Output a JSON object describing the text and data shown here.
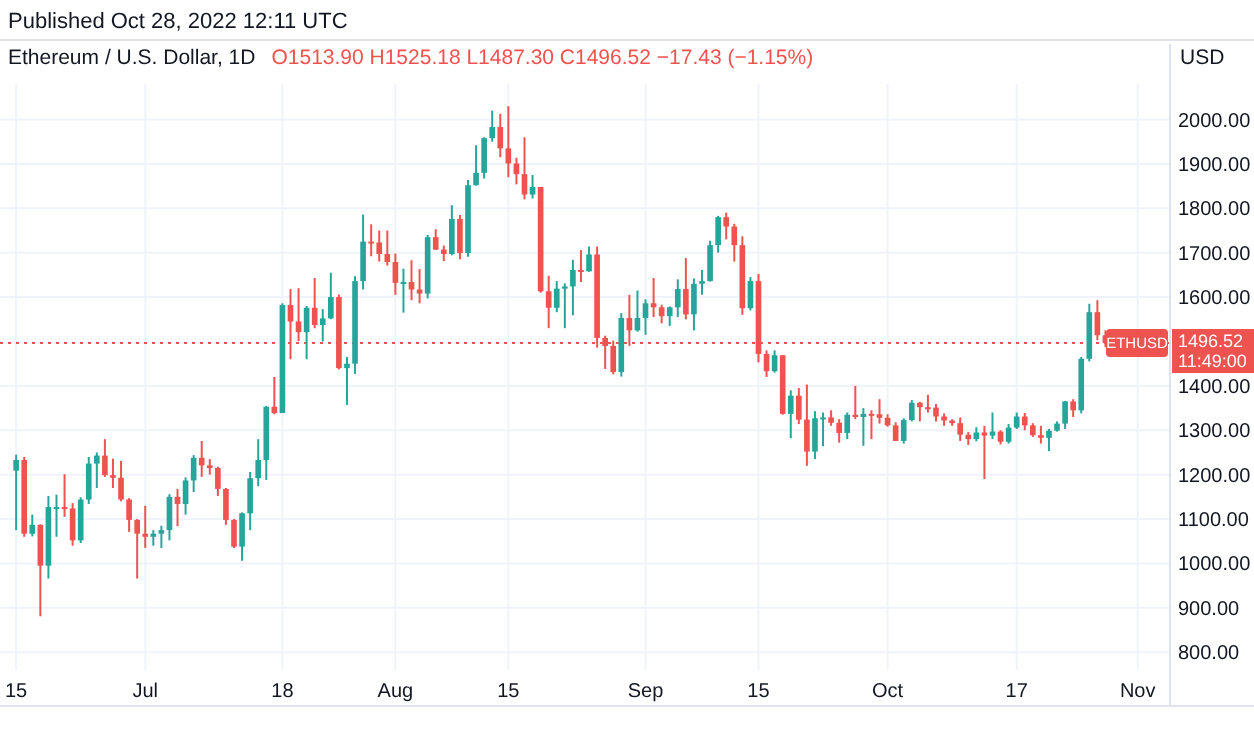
{
  "chart_data": {
    "type": "candlestick",
    "title": "Ethereum / U.S. Dollar, 1D",
    "subtitle": "O1513.90  H1525.18  L1487.30  C1496.52  −17.43 (−1.15%)",
    "ylabel": "USD",
    "annotations": [
      "Published Oct 28, 2022 12:11 UTC",
      "1496.52",
      "11:49:00"
    ],
    "x": [
      "2022-06-15",
      "2022-06-16",
      "2022-06-17",
      "2022-06-18",
      "2022-06-19",
      "2022-06-20",
      "2022-06-21",
      "2022-06-22",
      "2022-06-23",
      "2022-06-24",
      "2022-06-25",
      "2022-06-26",
      "2022-06-27",
      "2022-06-28",
      "2022-06-29",
      "2022-06-30",
      "2022-07-01",
      "2022-07-02",
      "2022-07-03",
      "2022-07-04",
      "2022-07-05",
      "2022-07-06",
      "2022-07-07",
      "2022-07-08",
      "2022-07-09",
      "2022-07-10",
      "2022-07-11",
      "2022-07-12",
      "2022-07-13",
      "2022-07-14",
      "2022-07-15",
      "2022-07-16",
      "2022-07-17",
      "2022-07-18",
      "2022-07-19",
      "2022-07-20",
      "2022-07-21",
      "2022-07-22",
      "2022-07-23",
      "2022-07-24",
      "2022-07-25",
      "2022-07-26",
      "2022-07-27",
      "2022-07-28",
      "2022-07-29",
      "2022-07-30",
      "2022-07-31",
      "2022-08-01",
      "2022-08-02",
      "2022-08-03",
      "2022-08-04",
      "2022-08-05",
      "2022-08-06",
      "2022-08-07",
      "2022-08-08",
      "2022-08-09",
      "2022-08-10",
      "2022-08-11",
      "2022-08-12",
      "2022-08-13",
      "2022-08-14",
      "2022-08-15",
      "2022-08-16",
      "2022-08-17",
      "2022-08-18",
      "2022-08-19",
      "2022-08-20",
      "2022-08-21",
      "2022-08-22",
      "2022-08-23",
      "2022-08-24",
      "2022-08-25",
      "2022-08-26",
      "2022-08-27",
      "2022-08-28",
      "2022-08-29",
      "2022-08-30",
      "2022-08-31",
      "2022-09-01",
      "2022-09-02",
      "2022-09-03",
      "2022-09-04",
      "2022-09-05",
      "2022-09-06",
      "2022-09-07",
      "2022-09-08",
      "2022-09-09",
      "2022-09-10",
      "2022-09-11",
      "2022-09-12",
      "2022-09-13",
      "2022-09-14",
      "2022-09-15",
      "2022-09-16",
      "2022-09-17",
      "2022-09-18",
      "2022-09-19",
      "2022-09-20",
      "2022-09-21",
      "2022-09-22",
      "2022-09-23",
      "2022-09-24",
      "2022-09-25",
      "2022-09-26",
      "2022-09-27",
      "2022-09-28",
      "2022-09-29",
      "2022-09-30",
      "2022-10-01",
      "2022-10-02",
      "2022-10-03",
      "2022-10-04",
      "2022-10-05",
      "2022-10-06",
      "2022-10-07",
      "2022-10-08",
      "2022-10-09",
      "2022-10-10",
      "2022-10-11",
      "2022-10-12",
      "2022-10-13",
      "2022-10-14",
      "2022-10-15",
      "2022-10-16",
      "2022-10-17",
      "2022-10-18",
      "2022-10-19",
      "2022-10-20",
      "2022-10-21",
      "2022-10-22",
      "2022-10-23",
      "2022-10-24",
      "2022-10-25",
      "2022-10-26",
      "2022-10-27",
      "2022-10-28"
    ],
    "ohlc": [
      [
        1209,
        1245,
        1075,
        1233
      ],
      [
        1233,
        1240,
        1060,
        1067
      ],
      [
        1067,
        1110,
        1061,
        1087
      ],
      [
        1087,
        1088,
        881,
        995
      ],
      [
        995,
        1152,
        966,
        1127
      ],
      [
        1127,
        1155,
        1060,
        1127
      ],
      [
        1127,
        1201,
        1105,
        1124
      ],
      [
        1124,
        1136,
        1040,
        1052
      ],
      [
        1052,
        1149,
        1046,
        1144
      ],
      [
        1144,
        1240,
        1134,
        1225
      ],
      [
        1225,
        1250,
        1170,
        1243
      ],
      [
        1243,
        1280,
        1195,
        1199
      ],
      [
        1199,
        1236,
        1170,
        1193
      ],
      [
        1193,
        1231,
        1140,
        1144
      ],
      [
        1144,
        1147,
        1071,
        1098
      ],
      [
        1098,
        1100,
        966,
        1067
      ],
      [
        1067,
        1130,
        1035,
        1060
      ],
      [
        1060,
        1075,
        1040,
        1067
      ],
      [
        1067,
        1085,
        1035,
        1075
      ],
      [
        1075,
        1156,
        1052,
        1150
      ],
      [
        1150,
        1168,
        1084,
        1134
      ],
      [
        1134,
        1194,
        1110,
        1187
      ],
      [
        1187,
        1244,
        1161,
        1238
      ],
      [
        1238,
        1276,
        1195,
        1221
      ],
      [
        1221,
        1235,
        1200,
        1215
      ],
      [
        1215,
        1218,
        1152,
        1168
      ],
      [
        1168,
        1170,
        1087,
        1098
      ],
      [
        1098,
        1100,
        1035,
        1038
      ],
      [
        1038,
        1115,
        1006,
        1113
      ],
      [
        1113,
        1206,
        1075,
        1192
      ],
      [
        1192,
        1280,
        1174,
        1233
      ],
      [
        1233,
        1355,
        1188,
        1353
      ],
      [
        1353,
        1420,
        1336,
        1339
      ],
      [
        1339,
        1586,
        1339,
        1582
      ],
      [
        1582,
        1618,
        1460,
        1545
      ],
      [
        1545,
        1620,
        1501,
        1521
      ],
      [
        1521,
        1580,
        1460,
        1576
      ],
      [
        1576,
        1643,
        1530,
        1537
      ],
      [
        1537,
        1573,
        1500,
        1552
      ],
      [
        1552,
        1655,
        1550,
        1600
      ],
      [
        1600,
        1606,
        1437,
        1440
      ],
      [
        1440,
        1465,
        1357,
        1450
      ],
      [
        1450,
        1647,
        1427,
        1636
      ],
      [
        1636,
        1786,
        1617,
        1725
      ],
      [
        1725,
        1764,
        1692,
        1723
      ],
      [
        1723,
        1750,
        1680,
        1697
      ],
      [
        1697,
        1750,
        1671,
        1679
      ],
      [
        1679,
        1698,
        1605,
        1632
      ],
      [
        1632,
        1664,
        1565,
        1634
      ],
      [
        1634,
        1683,
        1593,
        1617
      ],
      [
        1617,
        1663,
        1586,
        1608
      ],
      [
        1608,
        1740,
        1597,
        1735
      ],
      [
        1735,
        1753,
        1706,
        1707
      ],
      [
        1707,
        1716,
        1681,
        1697
      ],
      [
        1697,
        1807,
        1694,
        1776
      ],
      [
        1776,
        1785,
        1685,
        1699
      ],
      [
        1699,
        1864,
        1691,
        1852
      ],
      [
        1852,
        1942,
        1851,
        1880
      ],
      [
        1880,
        1960,
        1867,
        1958
      ],
      [
        1958,
        2020,
        1950,
        1983
      ],
      [
        1983,
        2013,
        1915,
        1935
      ],
      [
        1935,
        2030,
        1870,
        1901
      ],
      [
        1901,
        1914,
        1854,
        1877
      ],
      [
        1877,
        1960,
        1820,
        1831
      ],
      [
        1831,
        1875,
        1822,
        1848
      ],
      [
        1848,
        1848,
        1610,
        1613
      ],
      [
        1613,
        1648,
        1530,
        1576
      ],
      [
        1576,
        1636,
        1566,
        1619
      ],
      [
        1619,
        1631,
        1530,
        1624
      ],
      [
        1624,
        1684,
        1559,
        1661
      ],
      [
        1661,
        1706,
        1634,
        1658
      ],
      [
        1658,
        1714,
        1657,
        1696
      ],
      [
        1696,
        1714,
        1486,
        1508
      ],
      [
        1508,
        1513,
        1438,
        1490
      ],
      [
        1490,
        1502,
        1426,
        1431
      ],
      [
        1431,
        1564,
        1421,
        1553
      ],
      [
        1553,
        1605,
        1490,
        1525
      ],
      [
        1525,
        1615,
        1522,
        1553
      ],
      [
        1553,
        1595,
        1515,
        1586
      ],
      [
        1586,
        1643,
        1555,
        1577
      ],
      [
        1577,
        1583,
        1541,
        1557
      ],
      [
        1557,
        1579,
        1535,
        1577
      ],
      [
        1577,
        1640,
        1555,
        1618
      ],
      [
        1618,
        1688,
        1550,
        1561
      ],
      [
        1561,
        1642,
        1525,
        1630
      ],
      [
        1630,
        1661,
        1605,
        1636
      ],
      [
        1636,
        1727,
        1635,
        1717
      ],
      [
        1717,
        1783,
        1700,
        1780
      ],
      [
        1780,
        1790,
        1730,
        1759
      ],
      [
        1759,
        1765,
        1680,
        1717
      ],
      [
        1717,
        1737,
        1560,
        1575
      ],
      [
        1575,
        1645,
        1570,
        1636
      ],
      [
        1636,
        1652,
        1453,
        1472
      ],
      [
        1472,
        1480,
        1420,
        1433
      ],
      [
        1433,
        1480,
        1430,
        1469
      ],
      [
        1469,
        1469,
        1335,
        1337
      ],
      [
        1337,
        1390,
        1282,
        1378
      ],
      [
        1378,
        1395,
        1314,
        1324
      ],
      [
        1324,
        1403,
        1220,
        1252
      ],
      [
        1252,
        1343,
        1235,
        1327
      ],
      [
        1327,
        1340,
        1264,
        1329
      ],
      [
        1329,
        1345,
        1310,
        1317
      ],
      [
        1317,
        1325,
        1272,
        1294
      ],
      [
        1294,
        1340,
        1280,
        1335
      ],
      [
        1335,
        1400,
        1325,
        1330
      ],
      [
        1330,
        1350,
        1265,
        1337
      ],
      [
        1337,
        1345,
        1280,
        1336
      ],
      [
        1336,
        1370,
        1315,
        1328
      ],
      [
        1328,
        1336,
        1308,
        1311
      ],
      [
        1311,
        1318,
        1276,
        1276
      ],
      [
        1276,
        1327,
        1270,
        1323
      ],
      [
        1323,
        1368,
        1320,
        1362
      ],
      [
        1362,
        1364,
        1320,
        1352
      ],
      [
        1352,
        1380,
        1340,
        1351
      ],
      [
        1351,
        1359,
        1320,
        1331
      ],
      [
        1331,
        1338,
        1310,
        1322
      ],
      [
        1322,
        1325,
        1310,
        1316
      ],
      [
        1316,
        1329,
        1276,
        1290
      ],
      [
        1290,
        1296,
        1267,
        1280
      ],
      [
        1280,
        1307,
        1275,
        1295
      ],
      [
        1295,
        1310,
        1190,
        1288
      ],
      [
        1288,
        1340,
        1280,
        1297
      ],
      [
        1297,
        1300,
        1268,
        1274
      ],
      [
        1274,
        1314,
        1270,
        1306
      ],
      [
        1306,
        1340,
        1303,
        1331
      ],
      [
        1331,
        1339,
        1300,
        1311
      ],
      [
        1311,
        1316,
        1285,
        1289
      ],
      [
        1289,
        1310,
        1270,
        1283
      ],
      [
        1283,
        1303,
        1253,
        1299
      ],
      [
        1299,
        1320,
        1297,
        1315
      ],
      [
        1315,
        1366,
        1303,
        1365
      ],
      [
        1365,
        1370,
        1330,
        1345
      ],
      [
        1345,
        1465,
        1338,
        1461
      ],
      [
        1461,
        1585,
        1455,
        1566
      ],
      [
        1566,
        1593,
        1503,
        1514
      ],
      [
        1513.9,
        1525.18,
        1487.3,
        1496.52
      ]
    ],
    "xlim": [
      "2022-06-13",
      "2022-11-05"
    ],
    "xticks": [
      {
        "value": "2022-06-15",
        "label": "15"
      },
      {
        "value": "2022-07-01",
        "label": "Jul"
      },
      {
        "value": "2022-07-18",
        "label": "18"
      },
      {
        "value": "2022-08-01",
        "label": "Aug"
      },
      {
        "value": "2022-08-15",
        "label": "15"
      },
      {
        "value": "2022-09-01",
        "label": "Sep"
      },
      {
        "value": "2022-09-15",
        "label": "15"
      },
      {
        "value": "2022-10-01",
        "label": "Oct"
      },
      {
        "value": "2022-10-17",
        "label": "17"
      },
      {
        "value": "2022-11-01",
        "label": "Nov"
      }
    ],
    "ylim": [
      760,
      2080
    ],
    "yticks": [
      {
        "value": 800,
        "label": "800.00"
      },
      {
        "value": 900,
        "label": "900.00"
      },
      {
        "value": 1000,
        "label": "1000.00"
      },
      {
        "value": 1100,
        "label": "1100.00"
      },
      {
        "value": 1200,
        "label": "1200.00"
      },
      {
        "value": 1300,
        "label": "1300.00"
      },
      {
        "value": 1400,
        "label": "1400.00"
      },
      {
        "value": 1600,
        "label": "1600.00"
      },
      {
        "value": 1700,
        "label": "1700.00"
      },
      {
        "value": 1800,
        "label": "1800.00"
      },
      {
        "value": 1900,
        "label": "1900.00"
      },
      {
        "value": 2000,
        "label": "2000.00"
      }
    ],
    "grid": true,
    "ref_lines": [
      {
        "axis": "y",
        "value": 1496.52,
        "label": "ETHUSD",
        "color": "#ef5350",
        "line_style": "dotted"
      }
    ]
  }
}
